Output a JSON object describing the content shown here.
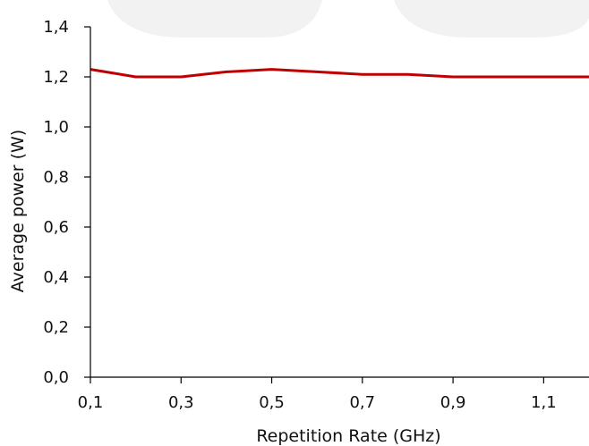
{
  "chart_data": {
    "type": "line",
    "xlabel": "Repetition Rate (GHz)",
    "ylabel": "Average power (W)",
    "xlim": [
      0.1,
      1.2
    ],
    "ylim": [
      0.0,
      1.4
    ],
    "x_ticks": [
      0.1,
      0.3,
      0.5,
      0.7,
      0.9,
      1.1
    ],
    "x_tick_labels": [
      "0,1",
      "0,3",
      "0,5",
      "0,7",
      "0,9",
      "1,1"
    ],
    "y_ticks": [
      0.0,
      0.2,
      0.4,
      0.6,
      0.8,
      1.0,
      1.2,
      1.4
    ],
    "y_tick_labels": [
      "0,0",
      "0,2",
      "0,4",
      "0,6",
      "0,8",
      "1,0",
      "1,2",
      "1,4"
    ],
    "grid": false,
    "series": [
      {
        "color": "#c00000",
        "x": [
          0.1,
          0.2,
          0.3,
          0.4,
          0.5,
          0.6,
          0.7,
          0.8,
          0.9,
          1.0,
          1.1,
          1.2
        ],
        "y": [
          1.23,
          1.2,
          1.2,
          1.22,
          1.23,
          1.22,
          1.21,
          1.21,
          1.2,
          1.2,
          1.2,
          1.2
        ]
      }
    ]
  }
}
